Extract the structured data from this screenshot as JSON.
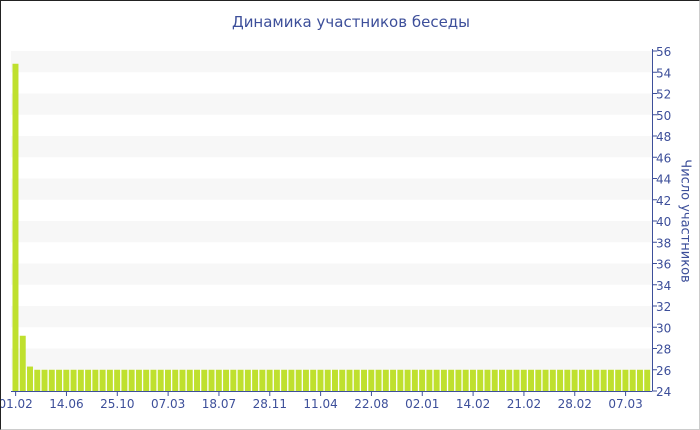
{
  "chart_data": {
    "type": "bar",
    "title": "Динамика участников беседы",
    "xlabel": "",
    "ylabel": "Число участников",
    "ylim": [
      24,
      56
    ],
    "yticks": [
      24,
      26,
      28,
      30,
      32,
      34,
      36,
      38,
      40,
      42,
      44,
      46,
      48,
      50,
      52,
      54,
      56
    ],
    "x_tick_labels": [
      "01.02",
      "14.06",
      "25.10",
      "07.03",
      "18.07",
      "28.11",
      "11.04",
      "22.08",
      "02.01",
      "14.02",
      "21.02",
      "28.02",
      "07.03"
    ],
    "x_tick_every": 7,
    "values": [
      54.8,
      29.2,
      26.3,
      26,
      26,
      26,
      26,
      26,
      26,
      26,
      26,
      26,
      26,
      26,
      26,
      26,
      26,
      26,
      26,
      26,
      26,
      26,
      26,
      26,
      26,
      26,
      26,
      26,
      26,
      26,
      26,
      26,
      26,
      26,
      26,
      26,
      26,
      26,
      26,
      26,
      26,
      26,
      26,
      26,
      26,
      26,
      26,
      26,
      26,
      26,
      26,
      26,
      26,
      26,
      26,
      26,
      26,
      26,
      26,
      26,
      26,
      26,
      26,
      26,
      26,
      26,
      26,
      26,
      26,
      26,
      26,
      26,
      26,
      26,
      26,
      26,
      26,
      26,
      26,
      26,
      26,
      26,
      26,
      26,
      26,
      26,
      26,
      26
    ],
    "grid": "alternating horizontal bands",
    "colors": {
      "bar": "#bfe02e",
      "text": "#3d4f9a",
      "axis": "#3d4f9a",
      "band": "#f7f7f7"
    }
  }
}
